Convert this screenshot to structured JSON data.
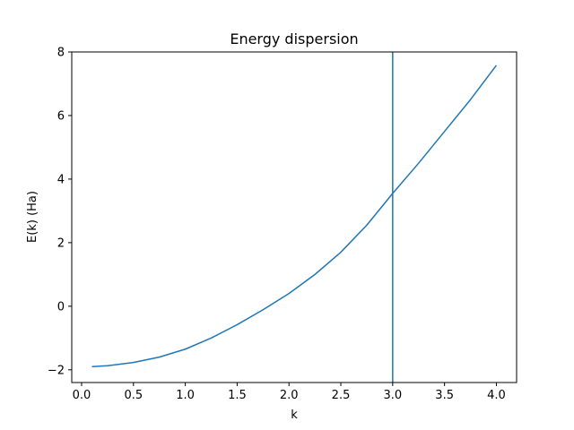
{
  "chart_data": {
    "type": "line",
    "title": "Energy dispersion",
    "xlabel": "k",
    "ylabel": "E(k) (Ha)",
    "xlim": [
      -0.095,
      4.195
    ],
    "ylim": [
      -2.4,
      8.0
    ],
    "xticks": [
      0.0,
      0.5,
      1.0,
      1.5,
      2.0,
      2.5,
      3.0,
      3.5,
      4.0
    ],
    "xtick_labels": [
      "0.0",
      "0.5",
      "1.0",
      "1.5",
      "2.0",
      "2.5",
      "3.0",
      "3.5",
      "4.0"
    ],
    "yticks": [
      -2,
      0,
      2,
      4,
      6,
      8
    ],
    "ytick_labels": [
      "−2",
      "0",
      "2",
      "4",
      "6",
      "8"
    ],
    "grid": false,
    "series": [
      {
        "color": "#1f77b4",
        "x": [
          0.1,
          0.25,
          0.5,
          0.75,
          1.0,
          1.25,
          1.5,
          1.75,
          2.0,
          2.25,
          2.5,
          2.75,
          3.0,
          3.25,
          3.5,
          3.75,
          4.0
        ],
        "y": [
          -1.9,
          -1.87,
          -1.77,
          -1.6,
          -1.35,
          -1.0,
          -0.58,
          -0.11,
          0.4,
          1.0,
          1.7,
          2.55,
          3.55,
          4.5,
          5.5,
          6.5,
          7.58
        ]
      }
    ],
    "vlines": [
      {
        "x": 3.0,
        "color": "#1f77b4"
      }
    ]
  }
}
